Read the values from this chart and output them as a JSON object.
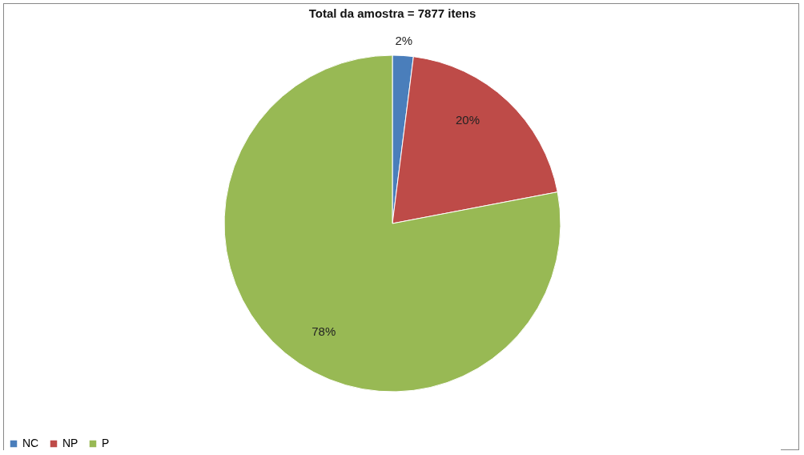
{
  "chart_data": {
    "type": "pie",
    "title": "Total da amostra = 7877 itens",
    "categories": [
      "NC",
      "NP",
      "P"
    ],
    "values": [
      2,
      20,
      78
    ],
    "colors": [
      "#4a7ebb",
      "#be4b48",
      "#98b954"
    ],
    "value_labels": [
      "2%",
      "20%",
      "78%"
    ],
    "legend": "bottom"
  }
}
